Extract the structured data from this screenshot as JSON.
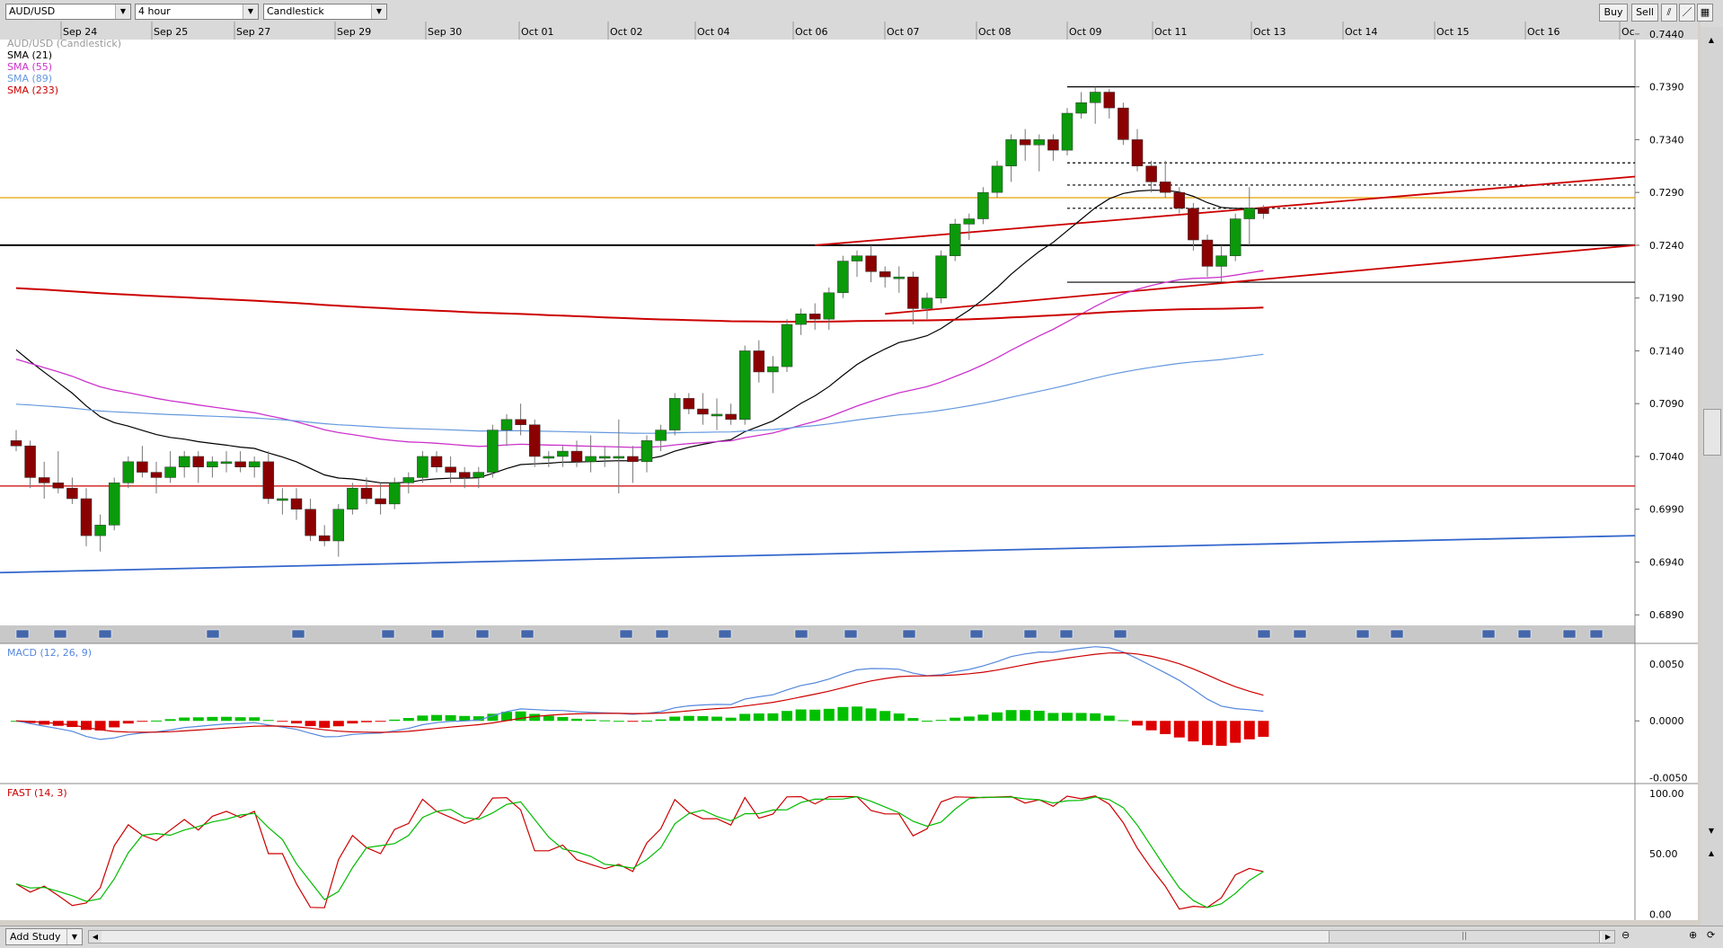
{
  "toolbar": {
    "symbol": "AUD/USD",
    "timeframe": "4 hour",
    "chart_style": "Candlestick",
    "buy_label": "Buy",
    "sell_label": "Sell",
    "icon_1": "bars-icon",
    "icon_2": "draw-line-icon",
    "icon_3": "config-icon"
  },
  "bottom": {
    "add_study_label": "Add Study"
  },
  "colors": {
    "background": "#ffffff",
    "up_candle": "#0a9a0a",
    "down_candle": "#8b0000",
    "sma21": "#000000",
    "sma55": "#cc33cc",
    "sma89": "#6699dd",
    "sma233": "#cc0000",
    "macd_line": "#5588dd",
    "signal_line": "#cc0000",
    "stoch_k": "#cc0000",
    "stoch_d": "#00bb00",
    "horizontal_gold": "#e8a000"
  },
  "chart_data": [
    {
      "type": "candlestick",
      "title": "AUD/USD (Candlestick)",
      "legend": [
        "SMA (21)",
        "SMA (55)",
        "SMA (89)",
        "SMA (233)"
      ],
      "x_tick_labels": [
        "Sep 24",
        "Sep 25",
        "Sep 27",
        "Sep 29",
        "Sep 30",
        "Oct 01",
        "Oct 02",
        "Oct 04",
        "Oct 06",
        "Oct 07",
        "Oct 08",
        "Oct 09",
        "Oct 11",
        "Oct 13",
        "Oct 14",
        "Oct 15",
        "Oct 16",
        "Oc"
      ],
      "y_tick_labels": [
        "0.7440",
        "0.7390",
        "0.7340",
        "0.7290",
        "0.7240",
        "0.7190",
        "0.7140",
        "0.7090",
        "0.7040",
        "0.6990",
        "0.6940",
        "0.6890"
      ],
      "ylim": [
        0.688,
        0.7445
      ],
      "candles": [
        [
          0.7055,
          0.7065,
          0.7045,
          0.705
        ],
        [
          0.705,
          0.7055,
          0.701,
          0.702
        ],
        [
          0.702,
          0.7035,
          0.7,
          0.7015
        ],
        [
          0.7015,
          0.7045,
          0.7005,
          0.701
        ],
        [
          0.701,
          0.702,
          0.6995,
          0.7
        ],
        [
          0.7,
          0.701,
          0.6955,
          0.6965
        ],
        [
          0.6965,
          0.6985,
          0.695,
          0.6975
        ],
        [
          0.6975,
          0.702,
          0.697,
          0.7015
        ],
        [
          0.7015,
          0.704,
          0.701,
          0.7035
        ],
        [
          0.7035,
          0.705,
          0.702,
          0.7025
        ],
        [
          0.7025,
          0.7035,
          0.7005,
          0.702
        ],
        [
          0.702,
          0.7045,
          0.7015,
          0.703
        ],
        [
          0.703,
          0.7045,
          0.702,
          0.704
        ],
        [
          0.704,
          0.7045,
          0.7015,
          0.703
        ],
        [
          0.703,
          0.704,
          0.702,
          0.7035
        ],
        [
          0.7035,
          0.7045,
          0.7025,
          0.7035
        ],
        [
          0.7035,
          0.7045,
          0.7025,
          0.703
        ],
        [
          0.703,
          0.704,
          0.702,
          0.7035
        ],
        [
          0.7035,
          0.7045,
          0.6995,
          0.7
        ],
        [
          0.7,
          0.701,
          0.6985,
          0.7
        ],
        [
          0.7,
          0.701,
          0.698,
          0.699
        ],
        [
          0.699,
          0.7,
          0.696,
          0.6965
        ],
        [
          0.6965,
          0.6975,
          0.6955,
          0.696
        ],
        [
          0.696,
          0.6995,
          0.6945,
          0.699
        ],
        [
          0.699,
          0.7015,
          0.6985,
          0.701
        ],
        [
          0.701,
          0.702,
          0.6995,
          0.7
        ],
        [
          0.7,
          0.7015,
          0.6985,
          0.6995
        ],
        [
          0.6995,
          0.702,
          0.699,
          0.7015
        ],
        [
          0.7015,
          0.7025,
          0.7005,
          0.702
        ],
        [
          0.702,
          0.7045,
          0.7015,
          0.704
        ],
        [
          0.704,
          0.7045,
          0.7025,
          0.703
        ],
        [
          0.703,
          0.704,
          0.7015,
          0.7025
        ],
        [
          0.7025,
          0.703,
          0.701,
          0.702
        ],
        [
          0.702,
          0.703,
          0.701,
          0.7025
        ],
        [
          0.7025,
          0.707,
          0.702,
          0.7065
        ],
        [
          0.7065,
          0.708,
          0.705,
          0.7075
        ],
        [
          0.7075,
          0.709,
          0.706,
          0.707
        ],
        [
          0.707,
          0.7075,
          0.703,
          0.704
        ],
        [
          0.704,
          0.7045,
          0.703,
          0.704
        ],
        [
          0.704,
          0.705,
          0.703,
          0.7045
        ],
        [
          0.7045,
          0.7055,
          0.703,
          0.7035
        ],
        [
          0.7035,
          0.706,
          0.7025,
          0.704
        ],
        [
          0.704,
          0.705,
          0.703,
          0.704
        ],
        [
          0.704,
          0.7075,
          0.7005,
          0.704
        ],
        [
          0.704,
          0.705,
          0.7015,
          0.7035
        ],
        [
          0.7035,
          0.706,
          0.7025,
          0.7055
        ],
        [
          0.7055,
          0.707,
          0.7045,
          0.7065
        ],
        [
          0.7065,
          0.71,
          0.706,
          0.7095
        ],
        [
          0.7095,
          0.71,
          0.708,
          0.7085
        ],
        [
          0.7085,
          0.71,
          0.707,
          0.708
        ],
        [
          0.708,
          0.7095,
          0.7065,
          0.708
        ],
        [
          0.708,
          0.709,
          0.707,
          0.7075
        ],
        [
          0.7075,
          0.7145,
          0.707,
          0.714
        ],
        [
          0.714,
          0.715,
          0.711,
          0.712
        ],
        [
          0.712,
          0.7135,
          0.71,
          0.7125
        ],
        [
          0.7125,
          0.717,
          0.712,
          0.7165
        ],
        [
          0.7165,
          0.718,
          0.7155,
          0.7175
        ],
        [
          0.7175,
          0.7185,
          0.716,
          0.717
        ],
        [
          0.717,
          0.72,
          0.716,
          0.7195
        ],
        [
          0.7195,
          0.723,
          0.719,
          0.7225
        ],
        [
          0.7225,
          0.7235,
          0.721,
          0.723
        ],
        [
          0.723,
          0.724,
          0.7205,
          0.7215
        ],
        [
          0.7215,
          0.722,
          0.72,
          0.721
        ],
        [
          0.721,
          0.722,
          0.7195,
          0.721
        ],
        [
          0.721,
          0.7215,
          0.7165,
          0.718
        ],
        [
          0.718,
          0.7195,
          0.717,
          0.719
        ],
        [
          0.719,
          0.7235,
          0.7185,
          0.723
        ],
        [
          0.723,
          0.7265,
          0.7225,
          0.726
        ],
        [
          0.726,
          0.727,
          0.7245,
          0.7265
        ],
        [
          0.7265,
          0.7295,
          0.726,
          0.729
        ],
        [
          0.729,
          0.732,
          0.7285,
          0.7315
        ],
        [
          0.7315,
          0.7345,
          0.73,
          0.734
        ],
        [
          0.734,
          0.735,
          0.732,
          0.7335
        ],
        [
          0.7335,
          0.7345,
          0.731,
          0.734
        ],
        [
          0.734,
          0.7345,
          0.732,
          0.733
        ],
        [
          0.733,
          0.737,
          0.7325,
          0.7365
        ],
        [
          0.7365,
          0.7385,
          0.736,
          0.7375
        ],
        [
          0.7375,
          0.739,
          0.7355,
          0.7385
        ],
        [
          0.7385,
          0.7388,
          0.736,
          0.737
        ],
        [
          0.737,
          0.7375,
          0.7335,
          0.734
        ],
        [
          0.734,
          0.735,
          0.731,
          0.7315
        ],
        [
          0.7315,
          0.732,
          0.729,
          0.73
        ],
        [
          0.73,
          0.732,
          0.7285,
          0.729
        ],
        [
          0.729,
          0.7295,
          0.727,
          0.7275
        ],
        [
          0.7275,
          0.728,
          0.7235,
          0.7245
        ],
        [
          0.7245,
          0.725,
          0.721,
          0.722
        ],
        [
          0.722,
          0.724,
          0.7205,
          0.723
        ],
        [
          0.723,
          0.727,
          0.7225,
          0.7265
        ],
        [
          0.7265,
          0.7295,
          0.724,
          0.7275
        ],
        [
          0.7275,
          0.7278,
          0.7265,
          0.727
        ]
      ],
      "horizontal_levels": [
        {
          "value": 0.739,
          "from_candle": 75,
          "to_end": true,
          "color": "#000000"
        },
        {
          "value": 0.7318,
          "from_candle": 75,
          "to_end": true,
          "color": "#000000",
          "dashed": true
        },
        {
          "value": 0.7297,
          "from_candle": 75,
          "to_end": true,
          "color": "#000000",
          "dashed": true
        },
        {
          "value": 0.7275,
          "from_candle": 75,
          "to_end": true,
          "color": "#000000",
          "dashed": true
        },
        {
          "value": 0.7205,
          "from_candle": 75,
          "to_end": true,
          "color": "#000000"
        },
        {
          "value": 0.7285,
          "from_candle": 0,
          "to_end": true,
          "color": "#e8a000"
        },
        {
          "value": 0.724,
          "from_candle": 0,
          "to_end": true,
          "color": "#000000"
        },
        {
          "value": 0.7012,
          "from_candle": 0,
          "to_end": true,
          "color": "#cc0000"
        }
      ],
      "trend_lines": [
        {
          "from": [
            0,
            0.693
          ],
          "to": [
            100,
            0.6965
          ],
          "color": "#3366cc"
        },
        {
          "from": [
            57,
            0.724
          ],
          "to": [
            100,
            0.7305
          ],
          "color": "#cc0000"
        },
        {
          "from": [
            62,
            0.7175
          ],
          "to": [
            100,
            0.724
          ],
          "color": "#cc0000"
        }
      ]
    },
    {
      "type": "line",
      "title": "MACD (12, 26, 9)",
      "y_tick_labels": [
        "0.0050",
        "0.0000",
        "-0.0050"
      ],
      "ylim": [
        -0.0055,
        0.0068
      ]
    },
    {
      "type": "line",
      "title": "FAST (14, 3)",
      "y_tick_labels": [
        "100.00",
        "50.00",
        "0.00"
      ],
      "ylim": [
        -5,
        108
      ]
    }
  ]
}
